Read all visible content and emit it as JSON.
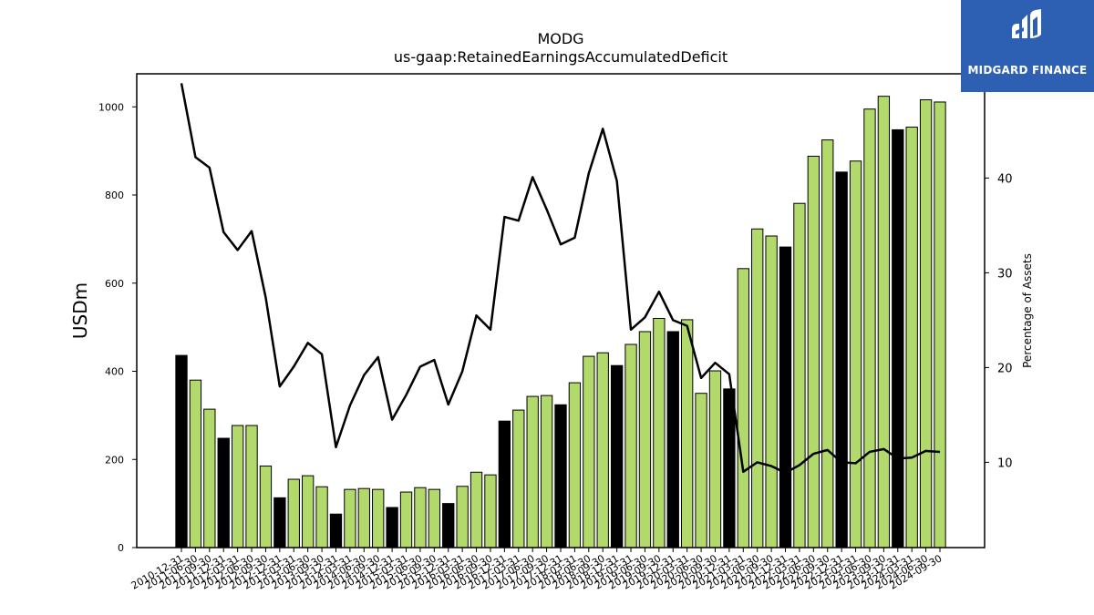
{
  "chart_data": {
    "type": "bar",
    "title": "MODG",
    "subtitle": "us-gaap:RetainedEarningsAccumulatedDeficit",
    "ylabel": "USDm",
    "y2label": "Percentage of Assets",
    "ylim": [
      0,
      1075
    ],
    "y2lim": [
      1,
      51
    ],
    "yticks": [
      0,
      200,
      400,
      600,
      800,
      1000
    ],
    "y2ticks": [
      10,
      20,
      30,
      40,
      50
    ],
    "grid": false,
    "categories": [
      "2010-12-31",
      "2011-06-30",
      "2011-09-30",
      "2011-12-31",
      "2012-03-31",
      "2012-06-30",
      "2012-09-30",
      "2012-12-31",
      "2013-03-31",
      "2013-06-30",
      "2013-09-30",
      "2013-12-31",
      "2014-03-31",
      "2014-06-30",
      "2014-09-30",
      "2014-12-31",
      "2015-03-31",
      "2015-06-30",
      "2015-09-30",
      "2015-12-31",
      "2016-03-31",
      "2016-06-30",
      "2016-09-30",
      "2016-12-31",
      "2017-03-31",
      "2017-06-30",
      "2017-09-30",
      "2017-12-31",
      "2018-03-31",
      "2018-06-30",
      "2018-09-30",
      "2018-12-31",
      "2019-03-31",
      "2019-06-30",
      "2019-09-30",
      "2019-12-31",
      "2020-03-31",
      "2020-06-30",
      "2020-09-30",
      "2020-12-31",
      "2021-03-31",
      "2021-06-30",
      "2021-09-30",
      "2021-12-31",
      "2022-03-31",
      "2022-06-30",
      "2022-09-30",
      "2022-12-31",
      "2023-03-31",
      "2023-06-30",
      "2023-09-30",
      "2023-12-31",
      "2024-03-31",
      "2024-06-30",
      "2024-09-30"
    ],
    "series": [
      {
        "type": "bar",
        "values": [
          436,
          380,
          314,
          248,
          277,
          277,
          185,
          113,
          155,
          163,
          138,
          76,
          132,
          134,
          132,
          91,
          126,
          136,
          132,
          100,
          139,
          171,
          165,
          287,
          312,
          343,
          345,
          324,
          374,
          434,
          442,
          413,
          461,
          490,
          520,
          490,
          517,
          350,
          401,
          360,
          633,
          723,
          707,
          682,
          781,
          888,
          925,
          852,
          877,
          995,
          1024,
          948,
          954,
          1016,
          1011
        ],
        "year_end_color": "#000000",
        "color": "#b2d96b"
      },
      {
        "type": "line",
        "axis": "right",
        "color": "#000000",
        "values": [
          50.0,
          42.2,
          41.1,
          34.3,
          32.4,
          34.4,
          27.4,
          18.0,
          20.1,
          22.6,
          21.4,
          11.6,
          16.0,
          19.2,
          21.1,
          14.5,
          17.1,
          20.1,
          20.8,
          16.1,
          19.6,
          25.5,
          24.0,
          35.9,
          35.5,
          40.1,
          36.7,
          33.0,
          33.7,
          40.5,
          45.2,
          39.7,
          24.0,
          25.3,
          28.0,
          25.0,
          24.4,
          18.9,
          20.5,
          19.3,
          9.0,
          10.0,
          9.6,
          8.9,
          9.7,
          10.9,
          11.3,
          10.0,
          9.9,
          11.1,
          11.4,
          10.4,
          10.5,
          11.2,
          11.1
        ]
      }
    ]
  },
  "logo": {
    "text": "MIDGARD FINANCE"
  }
}
